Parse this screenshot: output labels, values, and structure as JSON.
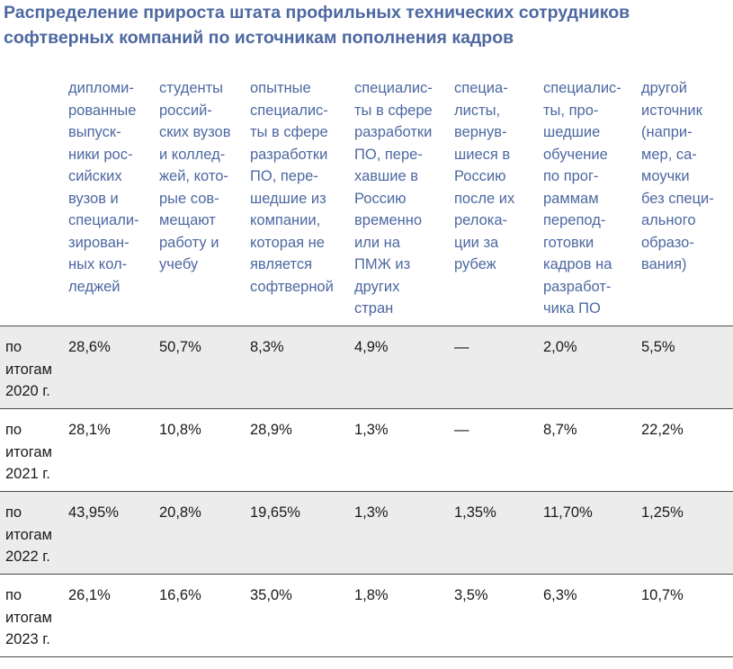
{
  "title": {
    "line1": "Распределение прироста штата профильных технических сотрудников",
    "line2": "софтверных компаний по источникам пополнения кадров"
  },
  "columns": [
    {
      "lines": [
        "дипломи-",
        "рованные",
        "выпуск-",
        "ники рос-",
        "сийских",
        "вузов и",
        "специали-",
        "зирован-",
        "ных кол-",
        "леджей"
      ]
    },
    {
      "lines": [
        "студенты",
        "россий-",
        "ских вузов",
        "и коллед-",
        "жей, кото-",
        "рые сов-",
        "мещают",
        "работу и",
        "учебу"
      ]
    },
    {
      "lines": [
        "опытные",
        "специалис-",
        "ты в сфере",
        "разработки",
        "ПО, пере-",
        "шедшие из",
        "компании,",
        "которая не",
        "является",
        "софтверной"
      ]
    },
    {
      "lines": [
        "специалис-",
        "ты в сфере",
        "разработки",
        "ПО, пере-",
        "хавшие в",
        "Россию",
        "временно",
        "или на",
        "ПМЖ из",
        "других",
        "стран"
      ]
    },
    {
      "lines": [
        "специа-",
        "листы,",
        "вернув-",
        "шиеся в",
        "Россию",
        "после их",
        "релока-",
        "ции за",
        "рубеж"
      ]
    },
    {
      "lines": [
        "специалис-",
        "ты, про-",
        "шедшие",
        "обучение",
        "по прог-",
        "раммам",
        "перепод-",
        "готовки",
        "кадров на",
        "разработ-",
        "чика ПО"
      ]
    },
    {
      "lines": [
        "другой",
        "источник",
        "(напри-",
        "мер, са-",
        "моучки",
        "без специ-",
        "ального",
        "образо-",
        "вания)"
      ]
    }
  ],
  "rows": [
    {
      "label": [
        "по",
        "итогам",
        "2020 г."
      ],
      "values": [
        "28,6%",
        "50,7%",
        "8,3%",
        "4,9%",
        "—",
        "2,0%",
        "5,5%"
      ]
    },
    {
      "label": [
        "по",
        "итогам",
        "2021 г."
      ],
      "values": [
        "28,1%",
        "10,8%",
        "28,9%",
        "1,3%",
        "—",
        "8,7%",
        "22,2%"
      ]
    },
    {
      "label": [
        "по",
        "итогам",
        "2022 г."
      ],
      "values": [
        "43,95%",
        "20,8%",
        "19,65%",
        "1,3%",
        "1,35%",
        "11,70%",
        "1,25%"
      ]
    },
    {
      "label": [
        "по",
        "итогам",
        "2023 г."
      ],
      "values": [
        "26,1%",
        "16,6%",
        "35,0%",
        "1,8%",
        "3,5%",
        "6,3%",
        "10,7%"
      ]
    }
  ],
  "colors": {
    "header_text": "#4d68a1",
    "shade": "#ececec",
    "rule": "#4a4a4a"
  }
}
